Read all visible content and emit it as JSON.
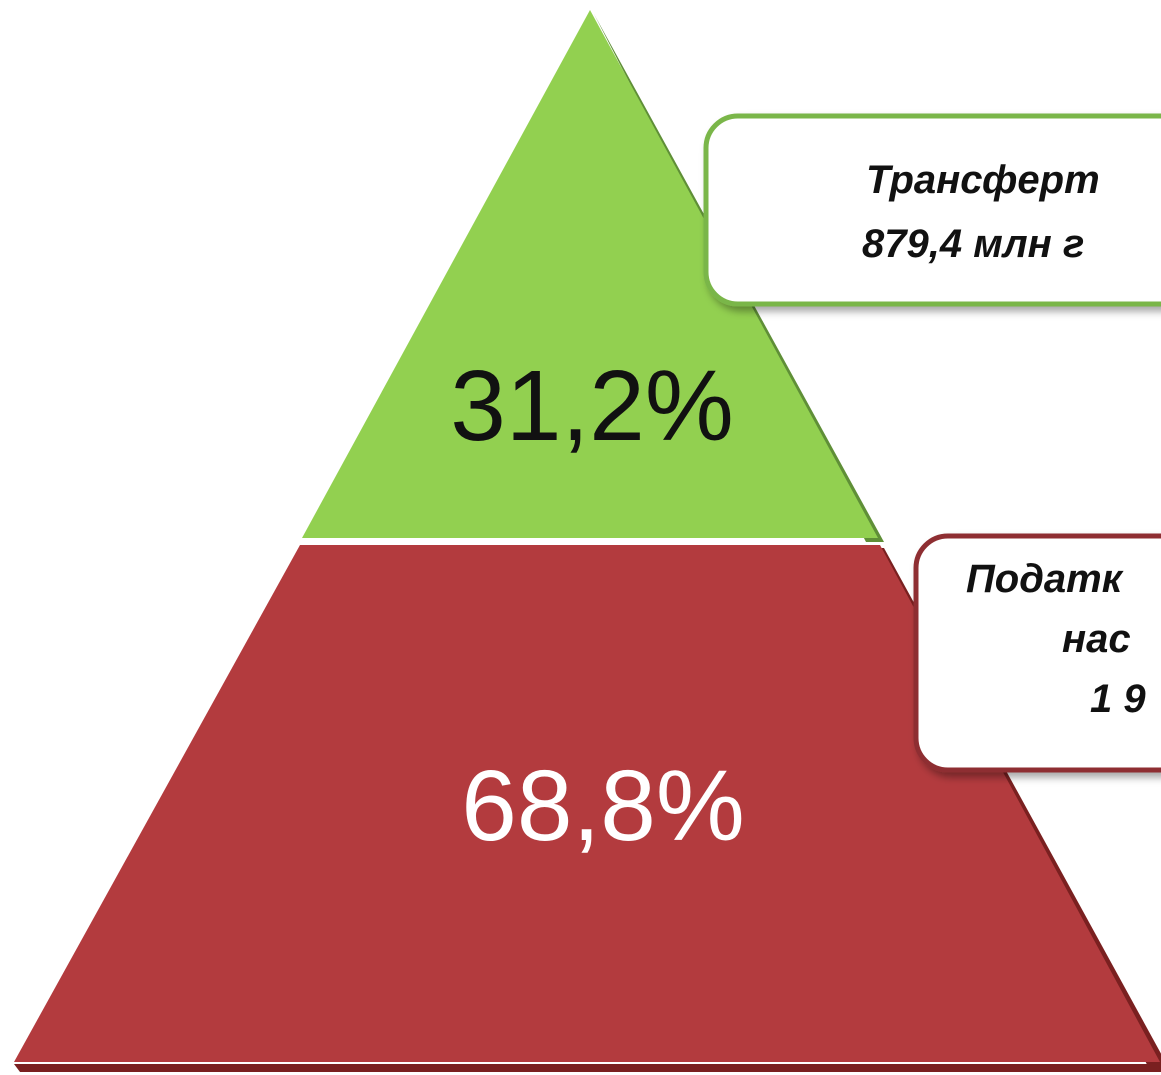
{
  "segments": [
    {
      "label": "31,2%"
    },
    {
      "label": "68,8%"
    }
  ],
  "callouts": [
    {
      "lines": [
        "Трансферт",
        "879,4 млн г"
      ]
    },
    {
      "lines": [
        "Податк",
        "нас",
        "1 9"
      ]
    }
  ]
}
